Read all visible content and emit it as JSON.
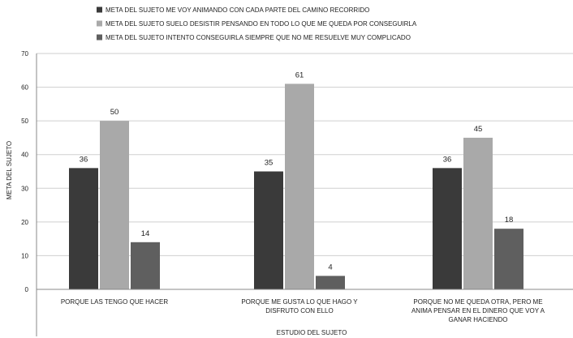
{
  "chart_data": {
    "type": "bar",
    "title": "",
    "xlabel": "ESTUDIO DEL SUJETO",
    "ylabel": "META DEL SUJETO",
    "ylim": [
      0,
      70
    ],
    "yticks": [
      0,
      10,
      20,
      30,
      40,
      50,
      60,
      70
    ],
    "grid": true,
    "legend_position": "top",
    "categories": [
      [
        "PORQUE LAS TENGO QUE HACER"
      ],
      [
        "PORQUE ME GUSTA  LO QUE HAGO Y",
        "DISFRUTO CON ELLO"
      ],
      [
        "PORQUE NO ME QUEDA OTRA, PERO ME",
        "ANIMA PENSAR EN EL DINERO QUE VOY A",
        "GANAR HACIENDO"
      ]
    ],
    "series": [
      {
        "name": "META DEL SUJETO ME VOY ANIMANDO CON CADA PARTE DEL CAMINO RECORRIDO",
        "color": "#3a3a3a",
        "values": [
          36,
          35,
          36
        ]
      },
      {
        "name": "META DEL SUJETO SUELO DESISTIR PENSANDO EN TODO LO QUE ME QUEDA POR CONSEGUIRLA",
        "color": "#a9a9a9",
        "values": [
          50,
          61,
          45
        ]
      },
      {
        "name": "META DEL SUJETO INTENTO CONSEGUIRLA SIEMPRE QUE NO ME RESUELVE MUY COMPLICADO",
        "color": "#5f5f5f",
        "values": [
          14,
          4,
          18
        ]
      }
    ]
  }
}
